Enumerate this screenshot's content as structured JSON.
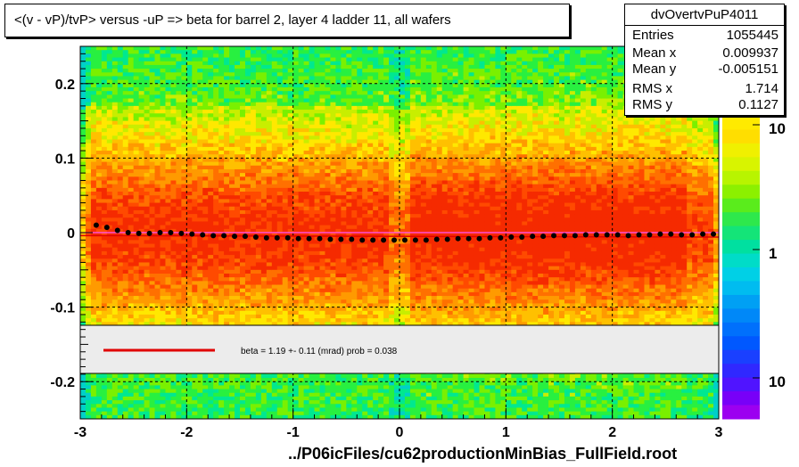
{
  "title": "<(v - vP)/tvP> versus  -uP => beta for barrel 2, layer 4 ladder 11, all wafers",
  "stats": {
    "name": "dvOvertvPuP4011",
    "rows": [
      {
        "label": "Entries",
        "value": "1055445"
      },
      {
        "label": "Mean x",
        "value": "0.009937"
      },
      {
        "label": "Mean y",
        "value": "-0.005151"
      },
      {
        "label": "RMS x",
        "value": "1.714"
      },
      {
        "label": "RMS y",
        "value": "0.1127"
      }
    ]
  },
  "fit_legend": "beta =    1.19 +-  0.11 (mrad) prob = 0.038",
  "footer": "../P06icFiles/cu62productionMinBias_FullField.root",
  "colors": {
    "profile_points": "#000000",
    "fit_line": "#e00000",
    "guide_line": "#ff55ff"
  },
  "chart_data": {
    "type": "heatmap",
    "xlim": [
      -3,
      3
    ],
    "ylim": [
      -0.25,
      0.25
    ],
    "x_ticks": [
      "-3",
      "-2",
      "-1",
      "0",
      "1",
      "2",
      "3"
    ],
    "y_ticks": [
      "-0.2",
      "-0.1",
      "0",
      "0.1",
      "0.2"
    ],
    "grid": true,
    "colorbar_log": true,
    "colorbar_labels": [
      "10",
      "1",
      "10"
    ],
    "profile": {
      "x": [
        -2.85,
        -2.75,
        -2.65,
        -2.55,
        -2.45,
        -2.35,
        -2.25,
        -2.15,
        -2.05,
        -1.95,
        -1.85,
        -1.75,
        -1.65,
        -1.55,
        -1.45,
        -1.35,
        -1.25,
        -1.15,
        -1.05,
        -0.95,
        -0.85,
        -0.75,
        -0.65,
        -0.55,
        -0.45,
        -0.35,
        -0.25,
        -0.15,
        -0.05,
        0.05,
        0.15,
        0.25,
        0.35,
        0.45,
        0.55,
        0.65,
        0.75,
        0.85,
        0.95,
        1.05,
        1.15,
        1.25,
        1.35,
        1.45,
        1.55,
        1.65,
        1.75,
        1.85,
        1.95,
        2.05,
        2.15,
        2.25,
        2.35,
        2.45,
        2.55,
        2.65,
        2.75,
        2.85,
        2.95
      ],
      "y": [
        0.01,
        0.007,
        0.003,
        0.0,
        -0.001,
        -0.001,
        0.0,
        0.0,
        -0.001,
        -0.002,
        -0.003,
        -0.004,
        -0.004,
        -0.005,
        -0.005,
        -0.006,
        -0.007,
        -0.007,
        -0.007,
        -0.008,
        -0.008,
        -0.008,
        -0.009,
        -0.009,
        -0.009,
        -0.01,
        -0.01,
        -0.01,
        -0.01,
        -0.01,
        -0.01,
        -0.01,
        -0.009,
        -0.009,
        -0.008,
        -0.008,
        -0.008,
        -0.007,
        -0.007,
        -0.006,
        -0.006,
        -0.005,
        -0.005,
        -0.004,
        -0.004,
        -0.004,
        -0.003,
        -0.003,
        -0.003,
        -0.003,
        -0.004,
        -0.003,
        -0.003,
        -0.002,
        -0.002,
        -0.003,
        -0.003,
        -0.002,
        -0.002
      ]
    },
    "fit_line": {
      "x": [
        -3,
        3
      ],
      "y": [
        -0.004,
        -0.006
      ]
    }
  }
}
